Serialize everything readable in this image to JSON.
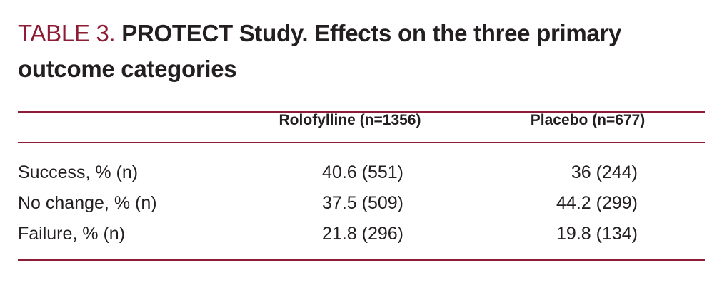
{
  "header": {
    "label": "TABLE 3.",
    "title": "PROTECT Study. Effects on the three primary outcome categories"
  },
  "table": {
    "columns": [
      "Rolofylline (n=1356)",
      "Placebo (n=677)"
    ],
    "rows": [
      [
        "Success, % (n)",
        "40.6 (551)",
        "36 (244)"
      ],
      [
        "No change, % (n)",
        "37.5 (509)",
        "44.2 (299)"
      ],
      [
        "Failure, % (n)",
        "21.8 (296)",
        "19.8 (134)"
      ]
    ]
  }
}
